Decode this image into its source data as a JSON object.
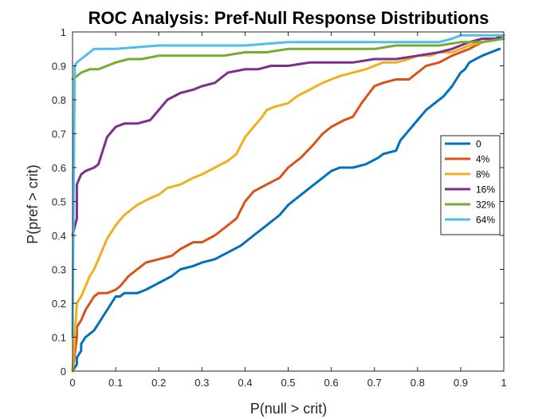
{
  "chart_data": {
    "type": "line",
    "title": "ROC Analysis: Pref-Null Response Distributions",
    "xlabel": "P(null > crit)",
    "ylabel": "P(pref > crit)",
    "xlim": [
      0,
      1
    ],
    "ylim": [
      0,
      1
    ],
    "xticks": [
      "0",
      "0.1",
      "0.2",
      "0.3",
      "0.4",
      "0.5",
      "0.6",
      "0.7",
      "0.8",
      "0.9",
      "1"
    ],
    "yticks": [
      "0",
      "0.1",
      "0.2",
      "0.3",
      "0.4",
      "0.5",
      "0.6",
      "0.7",
      "0.8",
      "0.9",
      "1"
    ],
    "grid": false,
    "legend_position": "right",
    "series": [
      {
        "name": "0",
        "color": "#0072BD",
        "x": [
          0,
          0.01,
          0.01,
          0.02,
          0.02,
          0.03,
          0.04,
          0.05,
          0.06,
          0.07,
          0.08,
          0.09,
          0.1,
          0.11,
          0.12,
          0.15,
          0.17,
          0.2,
          0.23,
          0.25,
          0.28,
          0.3,
          0.33,
          0.36,
          0.39,
          0.42,
          0.45,
          0.48,
          0.5,
          0.53,
          0.56,
          0.58,
          0.6,
          0.62,
          0.65,
          0.68,
          0.71,
          0.72,
          0.75,
          0.76,
          0.78,
          0.8,
          0.82,
          0.84,
          0.86,
          0.88,
          0.89,
          0.9,
          0.91,
          0.92,
          0.95,
          0.97,
          0.99
        ],
        "y": [
          0,
          0.02,
          0.04,
          0.06,
          0.08,
          0.1,
          0.11,
          0.12,
          0.14,
          0.16,
          0.18,
          0.2,
          0.22,
          0.22,
          0.23,
          0.23,
          0.24,
          0.26,
          0.28,
          0.3,
          0.31,
          0.32,
          0.33,
          0.35,
          0.37,
          0.4,
          0.43,
          0.46,
          0.49,
          0.52,
          0.55,
          0.57,
          0.59,
          0.6,
          0.6,
          0.61,
          0.63,
          0.64,
          0.65,
          0.68,
          0.71,
          0.74,
          0.77,
          0.79,
          0.81,
          0.84,
          0.86,
          0.88,
          0.89,
          0.91,
          0.93,
          0.94,
          0.95
        ]
      },
      {
        "name": "4%",
        "color": "#D95319",
        "x": [
          0,
          0.01,
          0.01,
          0.02,
          0.03,
          0.04,
          0.05,
          0.06,
          0.08,
          0.1,
          0.11,
          0.13,
          0.15,
          0.17,
          0.2,
          0.23,
          0.25,
          0.28,
          0.3,
          0.33,
          0.35,
          0.38,
          0.4,
          0.42,
          0.45,
          0.48,
          0.5,
          0.53,
          0.56,
          0.58,
          0.6,
          0.63,
          0.65,
          0.67,
          0.7,
          0.72,
          0.75,
          0.78,
          0.8,
          0.82,
          0.85,
          0.88,
          0.9,
          0.92,
          0.95,
          0.98,
          1.0
        ],
        "y": [
          0,
          0.1,
          0.13,
          0.15,
          0.18,
          0.2,
          0.22,
          0.23,
          0.23,
          0.24,
          0.25,
          0.28,
          0.3,
          0.32,
          0.33,
          0.34,
          0.36,
          0.38,
          0.38,
          0.4,
          0.42,
          0.45,
          0.5,
          0.53,
          0.55,
          0.57,
          0.6,
          0.63,
          0.67,
          0.7,
          0.72,
          0.74,
          0.75,
          0.79,
          0.84,
          0.85,
          0.86,
          0.86,
          0.88,
          0.9,
          0.91,
          0.93,
          0.94,
          0.95,
          0.97,
          0.98,
          0.99
        ]
      },
      {
        "name": "8%",
        "color": "#EDB120",
        "x": [
          0,
          0.01,
          0.02,
          0.03,
          0.04,
          0.05,
          0.06,
          0.07,
          0.08,
          0.1,
          0.12,
          0.15,
          0.18,
          0.2,
          0.22,
          0.25,
          0.28,
          0.3,
          0.33,
          0.36,
          0.38,
          0.4,
          0.42,
          0.44,
          0.45,
          0.47,
          0.5,
          0.52,
          0.55,
          0.58,
          0.6,
          0.62,
          0.65,
          0.68,
          0.7,
          0.72,
          0.75,
          0.78,
          0.8,
          0.83,
          0.85,
          0.88,
          0.9,
          0.92,
          0.95,
          0.98,
          1.0
        ],
        "y": [
          0,
          0.2,
          0.22,
          0.25,
          0.28,
          0.3,
          0.33,
          0.36,
          0.39,
          0.43,
          0.46,
          0.49,
          0.51,
          0.52,
          0.54,
          0.55,
          0.57,
          0.58,
          0.6,
          0.62,
          0.64,
          0.69,
          0.72,
          0.75,
          0.77,
          0.78,
          0.79,
          0.81,
          0.83,
          0.85,
          0.86,
          0.87,
          0.88,
          0.89,
          0.9,
          0.91,
          0.91,
          0.92,
          0.93,
          0.93,
          0.94,
          0.94,
          0.95,
          0.96,
          0.97,
          0.98,
          0.99
        ]
      },
      {
        "name": "16%",
        "color": "#7E2F8E",
        "x": [
          0,
          0.01,
          0.01,
          0.02,
          0.03,
          0.05,
          0.06,
          0.07,
          0.08,
          0.1,
          0.12,
          0.15,
          0.18,
          0.2,
          0.22,
          0.25,
          0.28,
          0.3,
          0.33,
          0.36,
          0.4,
          0.43,
          0.46,
          0.5,
          0.55,
          0.6,
          0.65,
          0.7,
          0.75,
          0.8,
          0.85,
          0.88,
          0.9,
          0.92,
          0.95,
          0.98,
          1.0
        ],
        "y": [
          0.4,
          0.45,
          0.55,
          0.58,
          0.59,
          0.6,
          0.61,
          0.65,
          0.69,
          0.72,
          0.73,
          0.73,
          0.74,
          0.77,
          0.8,
          0.82,
          0.83,
          0.84,
          0.85,
          0.88,
          0.89,
          0.89,
          0.9,
          0.9,
          0.91,
          0.91,
          0.91,
          0.92,
          0.92,
          0.93,
          0.94,
          0.95,
          0.96,
          0.97,
          0.98,
          0.98,
          0.99
        ]
      },
      {
        "name": "32%",
        "color": "#77AC30",
        "x": [
          0,
          0.01,
          0.02,
          0.04,
          0.06,
          0.08,
          0.1,
          0.13,
          0.16,
          0.2,
          0.23,
          0.26,
          0.3,
          0.35,
          0.4,
          0.45,
          0.5,
          0.55,
          0.6,
          0.65,
          0.7,
          0.75,
          0.8,
          0.85,
          0.9,
          0.95,
          1.0
        ],
        "y": [
          0.86,
          0.87,
          0.88,
          0.89,
          0.89,
          0.9,
          0.91,
          0.92,
          0.92,
          0.93,
          0.93,
          0.93,
          0.93,
          0.93,
          0.94,
          0.94,
          0.95,
          0.95,
          0.95,
          0.95,
          0.95,
          0.96,
          0.96,
          0.96,
          0.97,
          0.97,
          0.98
        ]
      },
      {
        "name": "64%",
        "color": "#4DBEEE",
        "x": [
          0,
          0.005,
          0.01,
          0.02,
          0.03,
          0.04,
          0.05,
          0.1,
          0.2,
          0.3,
          0.4,
          0.5,
          0.6,
          0.7,
          0.8,
          0.85,
          0.88,
          0.9,
          0.92,
          0.95,
          1.0
        ],
        "y": [
          0.1,
          0.9,
          0.91,
          0.92,
          0.93,
          0.94,
          0.95,
          0.95,
          0.96,
          0.96,
          0.96,
          0.97,
          0.97,
          0.97,
          0.97,
          0.97,
          0.98,
          0.99,
          0.99,
          0.99,
          0.99
        ]
      }
    ]
  }
}
